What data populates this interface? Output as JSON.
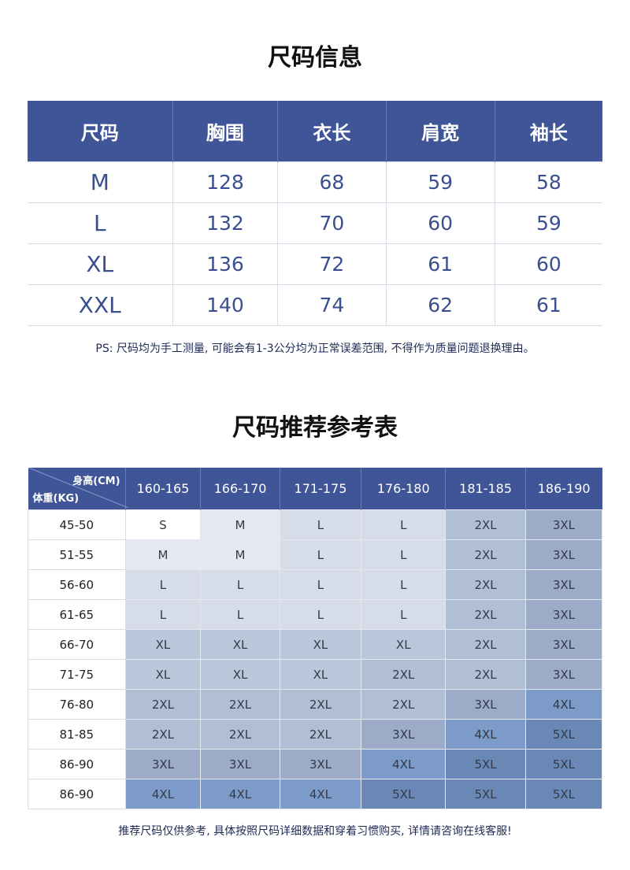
{
  "size_info": {
    "title": "尺码信息",
    "headers": [
      "尺码",
      "胸围",
      "衣长",
      "肩宽",
      "袖长"
    ],
    "rows": [
      [
        "M",
        "128",
        "68",
        "59",
        "58"
      ],
      [
        "L",
        "132",
        "70",
        "60",
        "59"
      ],
      [
        "XL",
        "136",
        "72",
        "61",
        "60"
      ],
      [
        "XXL",
        "140",
        "74",
        "62",
        "61"
      ]
    ],
    "note": "PS: 尺码均为手工测量, 可能会有1-3公分均为正常误差范围, 不得作为质量问题退换理由。"
  },
  "recommend": {
    "title": "尺码推荐参考表",
    "corner_height_label": "身高(CM)",
    "corner_weight_label": "体重(KG)",
    "heights": [
      "160-165",
      "166-170",
      "171-175",
      "176-180",
      "181-185",
      "186-190"
    ],
    "rows": [
      {
        "weight": "45-50",
        "sizes": [
          "S",
          "M",
          "L",
          "L",
          "2XL",
          "3XL"
        ]
      },
      {
        "weight": "51-55",
        "sizes": [
          "M",
          "M",
          "L",
          "L",
          "2XL",
          "3XL"
        ]
      },
      {
        "weight": "56-60",
        "sizes": [
          "L",
          "L",
          "L",
          "L",
          "2XL",
          "3XL"
        ]
      },
      {
        "weight": "61-65",
        "sizes": [
          "L",
          "L",
          "L",
          "L",
          "2XL",
          "3XL"
        ]
      },
      {
        "weight": "66-70",
        "sizes": [
          "XL",
          "XL",
          "XL",
          "XL",
          "2XL",
          "3XL"
        ]
      },
      {
        "weight": "71-75",
        "sizes": [
          "XL",
          "XL",
          "XL",
          "2XL",
          "2XL",
          "3XL"
        ]
      },
      {
        "weight": "76-80",
        "sizes": [
          "2XL",
          "2XL",
          "2XL",
          "2XL",
          "3XL",
          "4XL"
        ]
      },
      {
        "weight": "81-85",
        "sizes": [
          "2XL",
          "2XL",
          "2XL",
          "3XL",
          "4XL",
          "5XL"
        ]
      },
      {
        "weight": "86-90",
        "sizes": [
          "3XL",
          "3XL",
          "3XL",
          "4XL",
          "5XL",
          "5XL"
        ]
      },
      {
        "weight": "86-90",
        "sizes": [
          "4XL",
          "4XL",
          "4XL",
          "5XL",
          "5XL",
          "5XL"
        ]
      }
    ],
    "note": "推荐尺码仅供参考, 具体按照尺码详细数据和穿着习惯购买, 详情请咨询在线客服!"
  },
  "colors": {
    "header": "#3f5597",
    "value_text": "#3a4f8f",
    "S": "#ffffff",
    "M": "#e5e8ef",
    "L": "#d6dce8",
    "XL": "#bac7db",
    "2XL": "#b1bfd5",
    "3XL": "#9babc8",
    "4XL": "#7c9bc8",
    "5XL": "#6a88b6"
  }
}
